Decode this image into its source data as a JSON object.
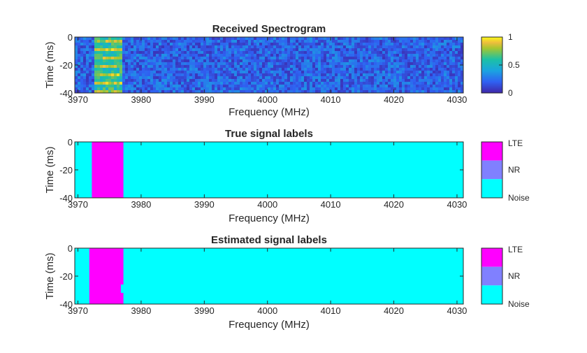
{
  "chart_data": [
    {
      "type": "heatmap",
      "title": "Received Spectrogram",
      "xlabel": "Frequency (MHz)",
      "ylabel": "Time (ms)",
      "xlim": [
        3969.5,
        4031
      ],
      "ylim": [
        -40,
        0
      ],
      "xticks": [
        3970,
        3980,
        3990,
        4000,
        4010,
        4020,
        4030
      ],
      "yticks": [
        0,
        -20,
        -40
      ],
      "signal_band_mhz": [
        3972.5,
        3977.0
      ],
      "noise_level_range": [
        0.05,
        0.35
      ],
      "signal_level_range": [
        0.4,
        1.0
      ],
      "colorbar": {
        "range": [
          0,
          1
        ],
        "ticks": [
          0,
          0.5,
          1
        ],
        "colormap": "parula"
      }
    },
    {
      "type": "heatmap",
      "title": "True signal labels",
      "xlabel": "Frequency (MHz)",
      "ylabel": "Time (ms)",
      "xlim": [
        3969.5,
        4031
      ],
      "ylim": [
        -40,
        0
      ],
      "xticks": [
        3970,
        3980,
        3990,
        4000,
        4010,
        4020,
        4030
      ],
      "yticks": [
        0,
        -20,
        -40
      ],
      "regions": [
        {
          "label": "LTE",
          "freq_range": [
            3972.2,
            3977.2
          ],
          "time_range": [
            -40,
            0
          ]
        }
      ],
      "background_label": "Noise",
      "legend": [
        "LTE",
        "NR",
        "Noise"
      ]
    },
    {
      "type": "heatmap",
      "title": "Estimated signal labels",
      "xlabel": "Frequency (MHz)",
      "ylabel": "Time (ms)",
      "xlim": [
        3969.5,
        4031
      ],
      "ylim": [
        -40,
        0
      ],
      "xticks": [
        3970,
        3980,
        3990,
        4000,
        4010,
        4020,
        4030
      ],
      "yticks": [
        0,
        -20,
        -40
      ],
      "regions": [
        {
          "label": "LTE",
          "freq_range": [
            3971.8,
            3977.2
          ],
          "time_range": [
            -26,
            0
          ]
        },
        {
          "label": "LTE",
          "freq_range": [
            3971.8,
            3976.8
          ],
          "time_range": [
            -32,
            -26
          ]
        },
        {
          "label": "LTE",
          "freq_range": [
            3971.8,
            3977.2
          ],
          "time_range": [
            -40,
            -32
          ]
        }
      ],
      "background_label": "Noise",
      "legend": [
        "LTE",
        "NR",
        "Noise"
      ]
    }
  ],
  "colors": {
    "LTE": "#ff00ff",
    "NR": "#8080ff",
    "Noise": "#00ffff",
    "axis": "#262626"
  }
}
